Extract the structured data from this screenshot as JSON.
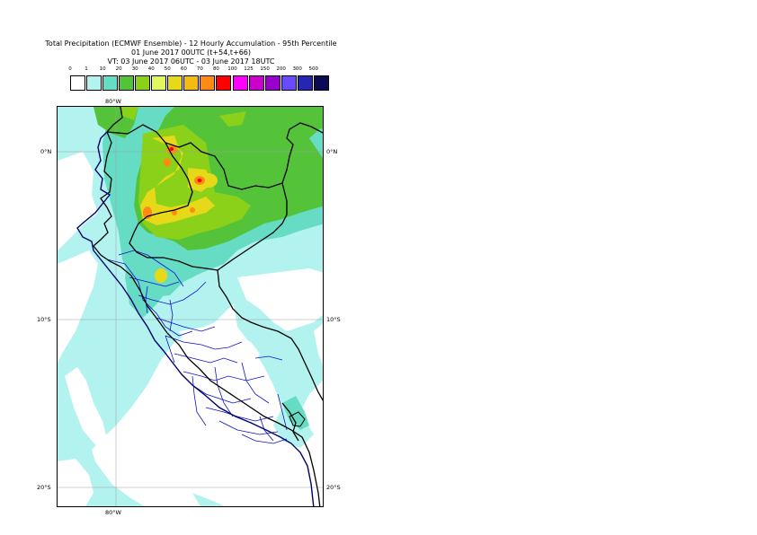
{
  "title": {
    "line1": "Total Precipitation (ECMWF Ensemble) - 12 Hourly Accumulation - 95th Percentile",
    "line2": "01 June 2017 00UTC (t+54,t+66)",
    "line3": "VT: 03 June 2017 06UTC - 03 June 2017 18UTC"
  },
  "legend": {
    "labels": [
      "0",
      "1",
      "10",
      "20",
      "30",
      "40",
      "50",
      "60",
      "70",
      "80",
      "100",
      "125",
      "150",
      "200",
      "300",
      "500"
    ],
    "colors": [
      "#ffffff",
      "#b3f3ef",
      "#66dcc4",
      "#55c33a",
      "#8bd119",
      "#e0f760",
      "#e6d91a",
      "#f3bb14",
      "#ff8a14",
      "#ff0000",
      "#ff00ff",
      "#cc00cc",
      "#9a00cc",
      "#6a4aff",
      "#2626b0",
      "#0a0a55"
    ]
  },
  "axis": {
    "top_lon": "80°W",
    "bottom_lon": "80°W",
    "lat_left": [
      "0°N",
      "10°S",
      "20°S"
    ],
    "lat_right": [
      "0°N",
      "10°S",
      "20°S"
    ]
  },
  "map_colors": {
    "cyan": "#b3f3ef",
    "teal": "#66dcc4",
    "green": "#55c33a",
    "lime": "#8bd119",
    "yellow": "#e6d91a",
    "orange": "#ff8a14",
    "red": "#ff0000",
    "border": "#000000",
    "region": "#1010cc",
    "grid": "#a0a0a0"
  }
}
